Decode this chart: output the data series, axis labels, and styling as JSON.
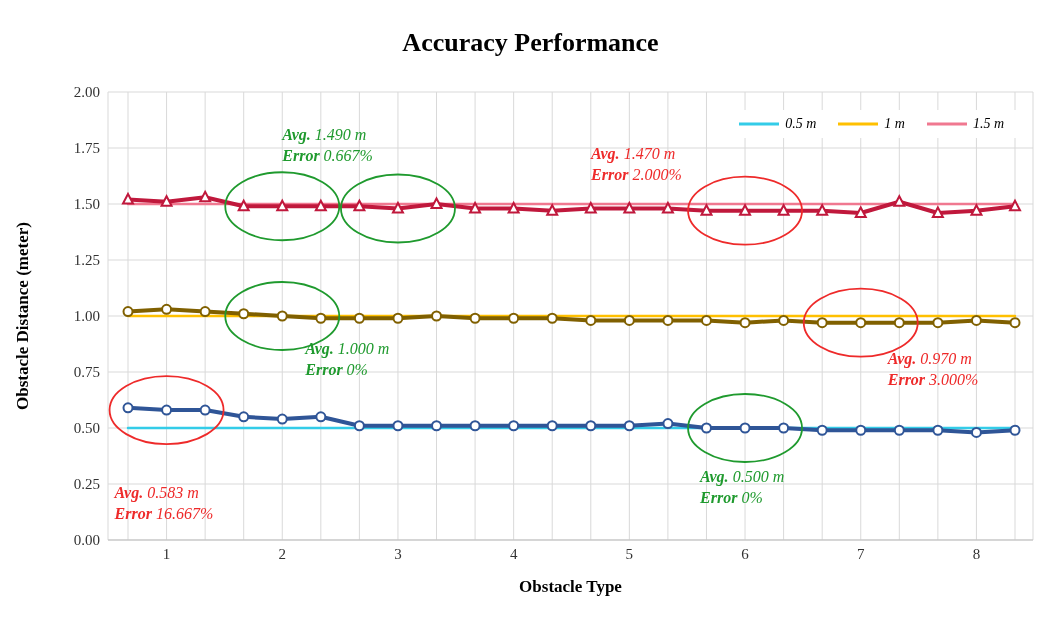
{
  "chart_data": {
    "type": "line",
    "title": "Accuracy Performance",
    "xlabel": "Obstacle Type",
    "ylabel": "Obstacle Distance (meter)",
    "categories": [
      null,
      "1",
      null,
      null,
      "2",
      null,
      null,
      "3",
      null,
      null,
      "4",
      null,
      null,
      "5",
      null,
      null,
      "6",
      null,
      null,
      "7",
      null,
      null,
      "8",
      null
    ],
    "series": [
      {
        "name": "0.5 m",
        "color": "#33cce8",
        "marker": "none",
        "values": [
          0.5,
          0.5,
          0.5,
          0.5,
          0.5,
          0.5,
          0.5,
          0.5,
          0.5,
          0.5,
          0.5,
          0.5,
          0.5,
          0.5,
          0.5,
          0.5,
          0.5,
          0.5,
          0.5,
          0.5,
          0.5,
          0.5,
          0.5,
          0.5
        ]
      },
      {
        "name": "1 m",
        "color": "#ffc000",
        "marker": "none",
        "values": [
          1,
          1,
          1,
          1,
          1,
          1,
          1,
          1,
          1,
          1,
          1,
          1,
          1,
          1,
          1,
          1,
          1,
          1,
          1,
          1,
          1,
          1,
          1,
          1
        ]
      },
      {
        "name": "1.5 m",
        "color": "#f07890",
        "marker": "none",
        "values": [
          1.5,
          1.5,
          1.5,
          1.5,
          1.5,
          1.5,
          1.5,
          1.5,
          1.5,
          1.5,
          1.5,
          1.5,
          1.5,
          1.5,
          1.5,
          1.5,
          1.5,
          1.5,
          1.5,
          1.5,
          1.5,
          1.5,
          1.5,
          1.5
        ]
      },
      {
        "color": "#2f5597",
        "marker": "circle",
        "values": [
          0.59,
          0.58,
          0.58,
          0.55,
          0.54,
          0.55,
          0.51,
          0.51,
          0.51,
          0.51,
          0.51,
          0.51,
          0.51,
          0.51,
          0.52,
          0.5,
          0.5,
          0.5,
          0.49,
          0.49,
          0.49,
          0.49,
          0.48,
          0.49
        ]
      },
      {
        "color": "#806000",
        "marker": "circle",
        "values": [
          1.02,
          1.03,
          1.02,
          1.01,
          1.0,
          0.99,
          0.99,
          0.99,
          1.0,
          0.99,
          0.99,
          0.99,
          0.98,
          0.98,
          0.98,
          0.98,
          0.97,
          0.98,
          0.97,
          0.97,
          0.97,
          0.97,
          0.98,
          0.97
        ]
      },
      {
        "color": "#c0183c",
        "marker": "triangle",
        "values": [
          1.52,
          1.51,
          1.53,
          1.49,
          1.49,
          1.49,
          1.49,
          1.48,
          1.5,
          1.48,
          1.48,
          1.47,
          1.48,
          1.48,
          1.48,
          1.47,
          1.47,
          1.47,
          1.47,
          1.46,
          1.51,
          1.46,
          1.47,
          1.49
        ]
      }
    ],
    "ylim": [
      0,
      2
    ],
    "yticks": [
      {
        "value": 0,
        "label": "0.00"
      },
      0.25,
      {
        "value": 0.5,
        "label": "0.50"
      },
      0.75,
      {
        "value": 1,
        "label": "1.00"
      },
      1.25,
      {
        "value": 1.5,
        "label": "1.50"
      },
      1.75,
      {
        "value": 2,
        "label": "2.00"
      }
    ],
    "grid": true,
    "legend": "top right",
    "annotations": [
      "Avg. 0.583 m\nError 16.667%",
      "Avg. 1.490 m\nError 0.667%",
      "Avg. 1.000 m\nError 0%",
      "Avg. 1.470 m\nError 2.000%",
      "Avg. 0.970 m\nError 3.000%",
      "Avg. 0.500 m\nError 0%"
    ]
  }
}
